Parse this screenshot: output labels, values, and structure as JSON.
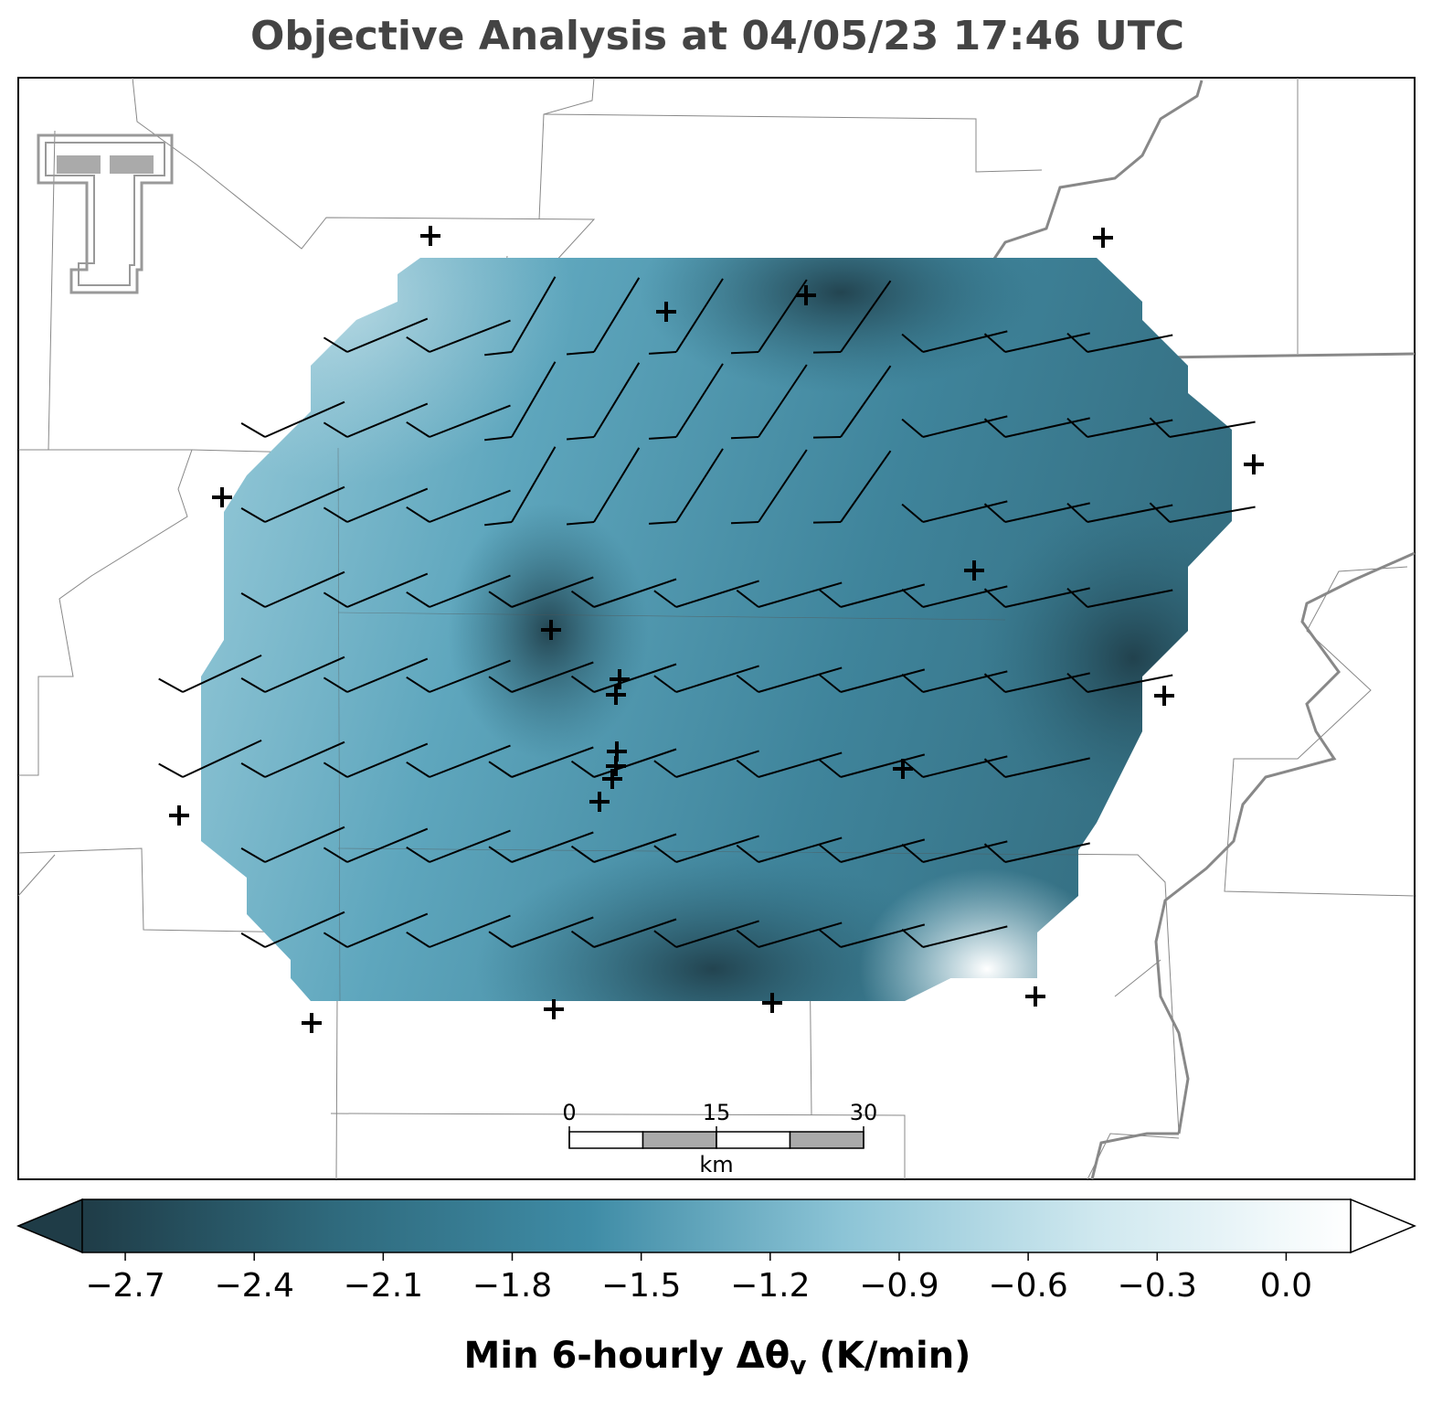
{
  "title": "Objective Analysis at 04/05/23 17:46 UTC",
  "colorbar": {
    "label": {
      "prefix": "Min 6-hourly Δθ",
      "subscript": "v",
      "suffix": " (K/min)"
    },
    "vlim": [
      -2.8,
      0.15
    ],
    "ticks": [
      {
        "value": -2.7,
        "label": "−2.7"
      },
      {
        "value": -2.4,
        "label": "−2.4"
      },
      {
        "value": -2.1,
        "label": "−2.1"
      },
      {
        "value": -1.8,
        "label": "−1.8"
      },
      {
        "value": -1.5,
        "label": "−1.5"
      },
      {
        "value": -1.2,
        "label": "−1.2"
      },
      {
        "value": -0.9,
        "label": "−0.9"
      },
      {
        "value": -0.6,
        "label": "−0.6"
      },
      {
        "value": -0.3,
        "label": "−0.3"
      },
      {
        "value": 0.0,
        "label": "0.0"
      }
    ],
    "colormap": [
      "#1f3c47",
      "#2f6a7d",
      "#3f8ca6",
      "#8cc4d6",
      "#cfe8ef",
      "#ffffff"
    ]
  },
  "scale_bar": {
    "ticks": [
      0,
      15,
      30
    ],
    "unit": "km"
  }
}
